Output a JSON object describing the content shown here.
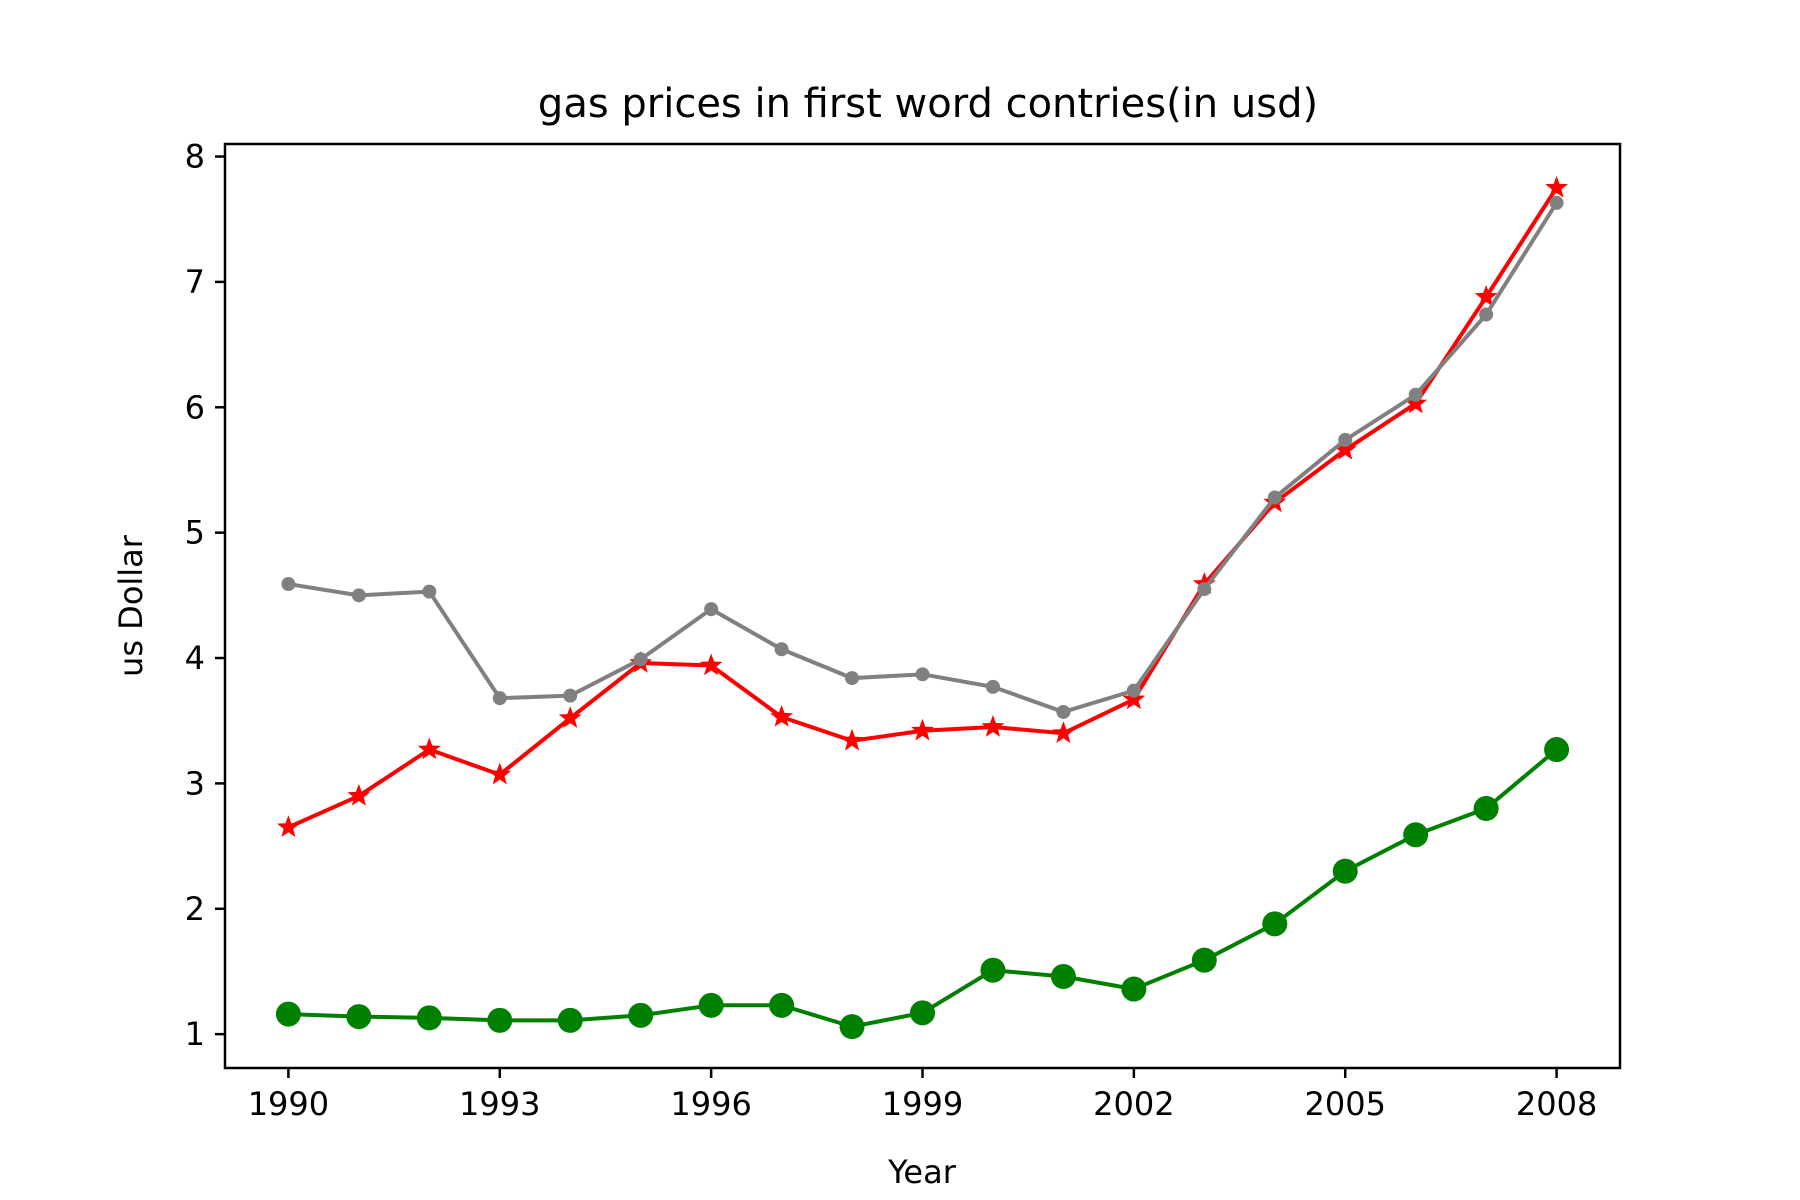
{
  "chart_data": {
    "type": "line",
    "title": "gas prices in first word contries(in usd)",
    "xlabel": "Year",
    "ylabel": "us Dollar",
    "x": [
      1990,
      1991,
      1992,
      1993,
      1994,
      1995,
      1996,
      1997,
      1998,
      1999,
      2000,
      2001,
      2002,
      2003,
      2004,
      2005,
      2006,
      2007,
      2008
    ],
    "xlim": [
      1989.1,
      2008.9
    ],
    "ylim": [
      0.73,
      8.1
    ],
    "xticks": [
      1990,
      1993,
      1996,
      1999,
      2002,
      2005,
      2008
    ],
    "xtick_labels": [
      "1990",
      "1993",
      "1996",
      "1999",
      "2002",
      "2005",
      "2008"
    ],
    "yticks": [
      1,
      2,
      3,
      4,
      5,
      6,
      7,
      8
    ],
    "ytick_labels": [
      "1",
      "2",
      "3",
      "4",
      "5",
      "6",
      "7",
      "8"
    ],
    "grid": false,
    "series": [
      {
        "color": "#ff0000",
        "marker": "star",
        "values": [
          2.65,
          2.9,
          3.27,
          3.07,
          3.52,
          3.96,
          3.94,
          3.53,
          3.34,
          3.42,
          3.45,
          3.4,
          3.67,
          4.59,
          5.24,
          5.66,
          6.03,
          6.88,
          7.75
        ]
      },
      {
        "color": "#808080",
        "marker": "point",
        "values": [
          4.59,
          4.5,
          4.53,
          3.68,
          3.7,
          3.99,
          4.39,
          4.07,
          3.84,
          3.87,
          3.77,
          3.57,
          3.74,
          4.55,
          5.28,
          5.74,
          6.1,
          6.74,
          7.63
        ]
      },
      {
        "color": "#008000",
        "marker": "circle",
        "values": [
          1.16,
          1.14,
          1.13,
          1.11,
          1.11,
          1.15,
          1.23,
          1.23,
          1.06,
          1.17,
          1.51,
          1.46,
          1.36,
          1.59,
          1.88,
          2.3,
          2.59,
          2.8,
          3.27
        ]
      }
    ]
  }
}
